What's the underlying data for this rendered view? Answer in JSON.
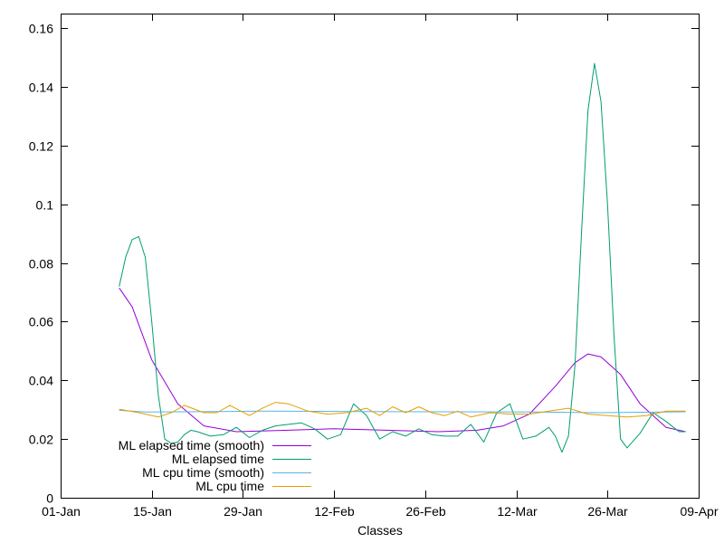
{
  "chart_data": {
    "type": "line",
    "title": "",
    "xlabel": "Classes",
    "ylabel": "",
    "x_is_date": true,
    "xlim": [
      "2013-01-01",
      "2013-04-09"
    ],
    "ylim": [
      0,
      0.165
    ],
    "x_ticks": [
      {
        "date": "2013-01-01",
        "label": "01-Jan"
      },
      {
        "date": "2013-01-15",
        "label": "15-Jan"
      },
      {
        "date": "2013-01-29",
        "label": "29-Jan"
      },
      {
        "date": "2013-02-12",
        "label": "12-Feb"
      },
      {
        "date": "2013-02-26",
        "label": "26-Feb"
      },
      {
        "date": "2013-03-12",
        "label": "12-Mar"
      },
      {
        "date": "2013-03-26",
        "label": "26-Mar"
      },
      {
        "date": "2013-04-09",
        "label": "09-Apr"
      }
    ],
    "y_ticks": [
      {
        "value": 0,
        "label": "0"
      },
      {
        "value": 0.02,
        "label": "0.02"
      },
      {
        "value": 0.04,
        "label": "0.04"
      },
      {
        "value": 0.06,
        "label": "0.06"
      },
      {
        "value": 0.08,
        "label": "0.08"
      },
      {
        "value": 0.1,
        "label": "0.1"
      },
      {
        "value": 0.12,
        "label": "0.12"
      },
      {
        "value": 0.14,
        "label": "0.14"
      },
      {
        "value": 0.16,
        "label": "0.16"
      }
    ],
    "grid": false,
    "legend_position": "bottom-left",
    "series": [
      {
        "name": "ML elapsed time (smooth)",
        "color": "#9400d3",
        "x": [
          "2013-01-10",
          "2013-01-12",
          "2013-01-15",
          "2013-01-19",
          "2013-01-23",
          "2013-01-28",
          "2013-02-05",
          "2013-02-12",
          "2013-02-20",
          "2013-02-28",
          "2013-03-06",
          "2013-03-10",
          "2013-03-14",
          "2013-03-18",
          "2013-03-21",
          "2013-03-23",
          "2013-03-25",
          "2013-03-28",
          "2013-03-31",
          "2013-04-04",
          "2013-04-07"
        ],
        "y": [
          0.0715,
          0.065,
          0.047,
          0.032,
          0.0245,
          0.0225,
          0.023,
          0.0235,
          0.023,
          0.0225,
          0.023,
          0.0245,
          0.0285,
          0.038,
          0.046,
          0.049,
          0.048,
          0.042,
          0.032,
          0.024,
          0.0225
        ]
      },
      {
        "name": "ML elapsed time",
        "color": "#009e73",
        "x": [
          "2013-01-10",
          "2013-01-11",
          "2013-01-12",
          "2013-01-13",
          "2013-01-14",
          "2013-01-15",
          "2013-01-16",
          "2013-01-17",
          "2013-01-18",
          "2013-01-19",
          "2013-01-20",
          "2013-01-21",
          "2013-01-22",
          "2013-01-24",
          "2013-01-26",
          "2013-01-28",
          "2013-01-30",
          "2013-02-01",
          "2013-02-03",
          "2013-02-05",
          "2013-02-07",
          "2013-02-09",
          "2013-02-11",
          "2013-02-13",
          "2013-02-15",
          "2013-02-17",
          "2013-02-19",
          "2013-02-21",
          "2013-02-23",
          "2013-02-25",
          "2013-02-27",
          "2013-03-01",
          "2013-03-03",
          "2013-03-05",
          "2013-03-07",
          "2013-03-09",
          "2013-03-11",
          "2013-03-13",
          "2013-03-15",
          "2013-03-17",
          "2013-03-18",
          "2013-03-19",
          "2013-03-20",
          "2013-03-21",
          "2013-03-22",
          "2013-03-23",
          "2013-03-24",
          "2013-03-25",
          "2013-03-26",
          "2013-03-27",
          "2013-03-28",
          "2013-03-29",
          "2013-03-31",
          "2013-04-02",
          "2013-04-04",
          "2013-04-06",
          "2013-04-07"
        ],
        "y": [
          0.072,
          0.082,
          0.088,
          0.089,
          0.082,
          0.06,
          0.035,
          0.02,
          0.0185,
          0.019,
          0.0215,
          0.023,
          0.0225,
          0.021,
          0.0215,
          0.024,
          0.0205,
          0.023,
          0.0245,
          0.025,
          0.0255,
          0.0235,
          0.02,
          0.0215,
          0.032,
          0.028,
          0.02,
          0.0225,
          0.021,
          0.0235,
          0.0215,
          0.021,
          0.021,
          0.025,
          0.019,
          0.029,
          0.032,
          0.02,
          0.021,
          0.024,
          0.021,
          0.0155,
          0.021,
          0.045,
          0.09,
          0.132,
          0.148,
          0.135,
          0.1,
          0.055,
          0.02,
          0.017,
          0.022,
          0.029,
          0.026,
          0.0225,
          0.0225
        ]
      },
      {
        "name": "ML cpu time (smooth)",
        "color": "#56b4e9",
        "x": [
          "2013-01-10",
          "2013-01-14",
          "2013-01-20",
          "2013-02-01",
          "2013-02-15",
          "2013-03-01",
          "2013-03-15",
          "2013-03-25",
          "2013-04-07"
        ],
        "y": [
          0.0298,
          0.0292,
          0.0293,
          0.0295,
          0.0294,
          0.0293,
          0.0292,
          0.029,
          0.0293
        ]
      },
      {
        "name": "ML cpu time",
        "color": "#e69f00",
        "x": [
          "2013-01-10",
          "2013-01-13",
          "2013-01-16",
          "2013-01-18",
          "2013-01-20",
          "2013-01-23",
          "2013-01-25",
          "2013-01-27",
          "2013-01-30",
          "2013-02-01",
          "2013-02-03",
          "2013-02-05",
          "2013-02-08",
          "2013-02-11",
          "2013-02-14",
          "2013-02-17",
          "2013-02-19",
          "2013-02-21",
          "2013-02-23",
          "2013-02-25",
          "2013-02-27",
          "2013-03-01",
          "2013-03-03",
          "2013-03-05",
          "2013-03-08",
          "2013-03-11",
          "2013-03-14",
          "2013-03-17",
          "2013-03-20",
          "2013-03-23",
          "2013-03-26",
          "2013-03-29",
          "2013-04-01",
          "2013-04-04",
          "2013-04-07"
        ],
        "y": [
          0.0302,
          0.029,
          0.0275,
          0.029,
          0.0315,
          0.029,
          0.029,
          0.0315,
          0.028,
          0.0305,
          0.0325,
          0.032,
          0.0295,
          0.0285,
          0.029,
          0.0305,
          0.028,
          0.031,
          0.029,
          0.031,
          0.029,
          0.028,
          0.0295,
          0.0275,
          0.029,
          0.0285,
          0.0285,
          0.0295,
          0.0305,
          0.0285,
          0.028,
          0.0275,
          0.028,
          0.0295,
          0.0295
        ]
      }
    ]
  }
}
